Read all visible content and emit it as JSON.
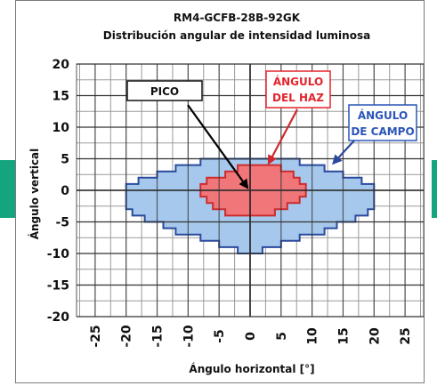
{
  "colors": {
    "accent_tab": "#14a57e",
    "field_fill": "#a6c8ec",
    "field_stroke": "#2a4a9c",
    "beam_fill": "#f0767a",
    "beam_stroke": "#cc2c2e",
    "grid": "#9a9a9a",
    "axis": "#111111",
    "pico_arrow": "#000000",
    "beam_label": "#e3242b",
    "field_label": "#2b55b8"
  },
  "chart_data": {
    "type": "heatmap",
    "title": "RM4-GCFB-28B-92GK",
    "subtitle": "Distribución angular de intensidad luminosa",
    "xlabel": "Ángulo horizontal [°]",
    "ylabel": "Ángulo vertical",
    "xlim": [
      -28,
      28
    ],
    "ylim": [
      -20,
      20
    ],
    "xticks": [
      -25,
      -20,
      -15,
      -10,
      -5,
      0,
      5,
      10,
      15,
      20,
      25
    ],
    "yticks": [
      20,
      15,
      10,
      5,
      0,
      -5,
      -10,
      -15,
      -20
    ],
    "grid": true,
    "annotations": {
      "peak": {
        "label": "PICO",
        "x": 0,
        "y": 0
      },
      "beam": {
        "label_line1": "ÁNGULO",
        "label_line2": "DEL HAZ",
        "x": 3,
        "y": 4
      },
      "field": {
        "label_line1": "ÁNGULO",
        "label_line2": "DE CAMPO",
        "x": 13,
        "y": 4
      }
    },
    "field_angle_polygon": [
      [
        -12,
        4
      ],
      [
        -8,
        4
      ],
      [
        -8,
        5
      ],
      [
        8,
        5
      ],
      [
        8,
        4
      ],
      [
        12,
        4
      ],
      [
        12,
        3
      ],
      [
        15,
        3
      ],
      [
        15,
        2
      ],
      [
        18,
        2
      ],
      [
        18,
        1
      ],
      [
        20,
        1
      ],
      [
        20,
        -3
      ],
      [
        19,
        -3
      ],
      [
        19,
        -4
      ],
      [
        17,
        -4
      ],
      [
        17,
        -5
      ],
      [
        14,
        -5
      ],
      [
        14,
        -6
      ],
      [
        12,
        -6
      ],
      [
        12,
        -7
      ],
      [
        8,
        -7
      ],
      [
        8,
        -8
      ],
      [
        5,
        -8
      ],
      [
        5,
        -9
      ],
      [
        2,
        -9
      ],
      [
        2,
        -10
      ],
      [
        -2,
        -10
      ],
      [
        -2,
        -9
      ],
      [
        -5,
        -9
      ],
      [
        -5,
        -8
      ],
      [
        -8,
        -8
      ],
      [
        -8,
        -7
      ],
      [
        -12,
        -7
      ],
      [
        -12,
        -6
      ],
      [
        -14,
        -6
      ],
      [
        -14,
        -5
      ],
      [
        -17,
        -5
      ],
      [
        -17,
        -4
      ],
      [
        -19,
        -4
      ],
      [
        -19,
        -3
      ],
      [
        -20,
        -3
      ],
      [
        -20,
        1
      ],
      [
        -18,
        1
      ],
      [
        -18,
        2
      ],
      [
        -15,
        2
      ],
      [
        -15,
        3
      ],
      [
        -12,
        3
      ]
    ],
    "beam_angle_polygon": [
      [
        -4,
        2
      ],
      [
        -4,
        3
      ],
      [
        -2,
        3
      ],
      [
        -2,
        4
      ],
      [
        5,
        4
      ],
      [
        5,
        3
      ],
      [
        7,
        3
      ],
      [
        7,
        2
      ],
      [
        8,
        2
      ],
      [
        8,
        1
      ],
      [
        9,
        1
      ],
      [
        9,
        -1
      ],
      [
        8,
        -1
      ],
      [
        8,
        -2
      ],
      [
        6,
        -2
      ],
      [
        6,
        -3
      ],
      [
        4,
        -3
      ],
      [
        4,
        -4
      ],
      [
        -4,
        -4
      ],
      [
        -4,
        -3
      ],
      [
        -6,
        -3
      ],
      [
        -6,
        -2
      ],
      [
        -7,
        -2
      ],
      [
        -7,
        -1
      ],
      [
        -8,
        -1
      ],
      [
        -8,
        1
      ],
      [
        -7,
        1
      ],
      [
        -7,
        2
      ]
    ]
  }
}
